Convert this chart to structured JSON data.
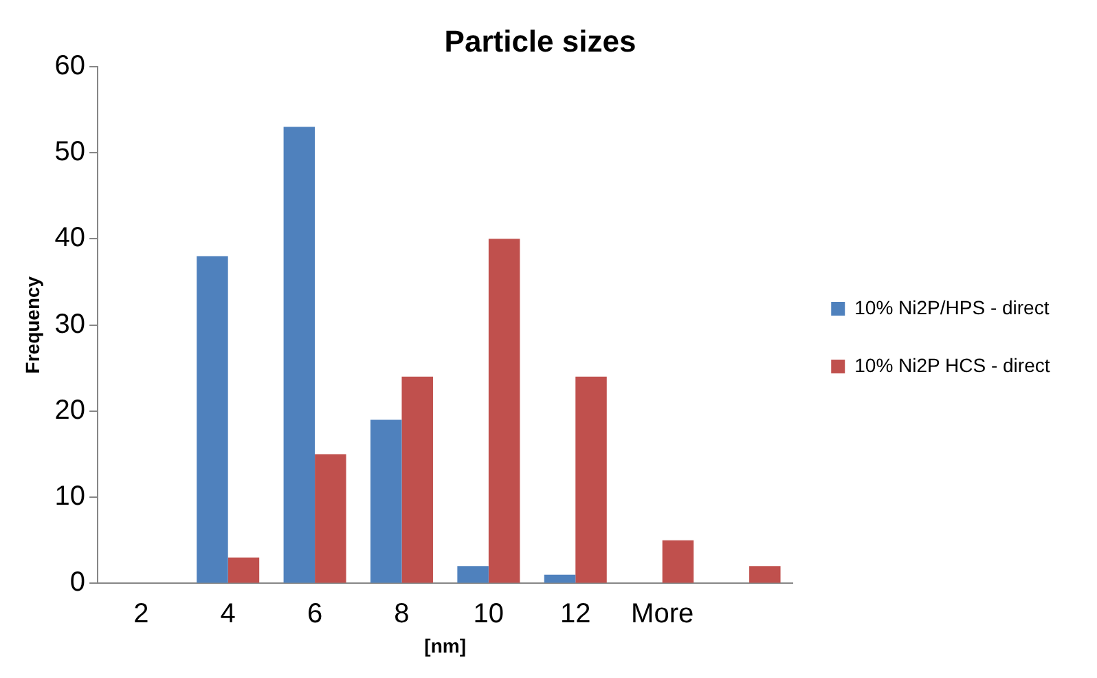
{
  "chart_data": {
    "type": "bar",
    "title": "Particle sizes",
    "xlabel": "[nm]",
    "ylabel": "Frequency",
    "categories": [
      "2",
      "4",
      "6",
      "8",
      "10",
      "12",
      "More",
      null
    ],
    "series": [
      {
        "name": "10% Ni2P/HPS - direct",
        "color": "#4f81bd",
        "values": [
          0,
          38,
          53,
          19,
          2,
          1,
          0,
          0
        ]
      },
      {
        "name": "10% Ni2P HCS - direct",
        "color": "#c0504d",
        "values": [
          0,
          3,
          15,
          24,
          40,
          24,
          5,
          2
        ]
      }
    ],
    "ylim": [
      0,
      60
    ],
    "yticks": [
      0,
      10,
      20,
      30,
      40,
      50,
      60
    ],
    "grid": false,
    "legend": "right"
  }
}
